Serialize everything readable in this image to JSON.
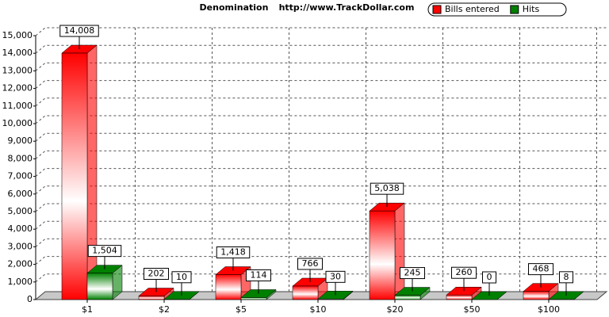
{
  "chart_data": {
    "type": "bar3d",
    "title": "Denomination",
    "subtitle": "http://www.TrackDollar.com",
    "categories": [
      "$1",
      "$2",
      "$5",
      "$10",
      "$20",
      "$50",
      "$100"
    ],
    "series": [
      {
        "name": "Bills entered",
        "color": "#ff0000",
        "values": [
          14008,
          202,
          1418,
          766,
          5038,
          260,
          468
        ],
        "value_labels": [
          "14,008",
          "202",
          "1,418",
          "766",
          "5,038",
          "260",
          "468"
        ]
      },
      {
        "name": "Hits",
        "color": "#008000",
        "values": [
          1504,
          10,
          114,
          30,
          245,
          0,
          8
        ],
        "value_labels": [
          "1,504",
          "10",
          "114",
          "30",
          "245",
          "0",
          "8"
        ]
      }
    ],
    "ylim": [
      0,
      15000
    ],
    "yticks": [
      0,
      {
        "value": 1000,
        "label": "1,000"
      },
      {
        "value": 2000,
        "label": "2,000"
      },
      {
        "value": 3000,
        "label": "3,000"
      },
      {
        "value": 4000,
        "label": "4,000"
      },
      {
        "value": 5000,
        "label": "5,000"
      },
      {
        "value": 6000,
        "label": "6,000"
      },
      {
        "value": 7000,
        "label": "7,000"
      },
      {
        "value": 8000,
        "label": "8,000"
      },
      {
        "value": 9000,
        "label": "9,000"
      },
      {
        "value": 10000,
        "label": "10,000"
      },
      {
        "value": 11000,
        "label": "11,000"
      },
      {
        "value": 12000,
        "label": "12,000"
      },
      {
        "value": 13000,
        "label": "13,000"
      },
      {
        "value": 14000,
        "label": "14,000"
      },
      {
        "value": 15000,
        "label": "15,000"
      }
    ],
    "grid": true,
    "legend": "top-right"
  }
}
